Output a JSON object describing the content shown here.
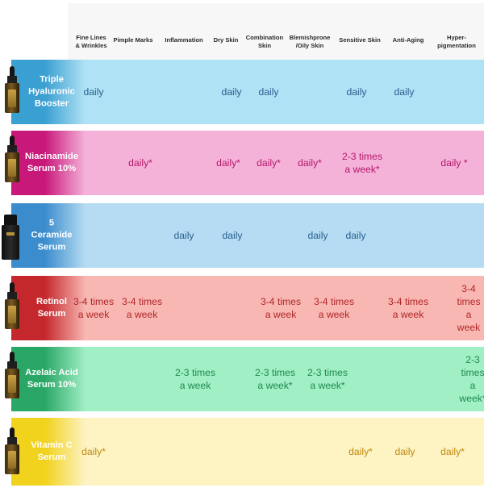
{
  "columns": [
    "Fine Lines\n& Wrinkles",
    "Pimple Marks",
    "Inflammation",
    "Dry Skin",
    "Combination\nSkin",
    "Blemishprone\n/Oily Skin",
    "Sensitive Skin",
    "Anti-Aging",
    "Hyper-\npigmentation"
  ],
  "rows": [
    {
      "product": "Triple\nHyaluronic\nBooster",
      "color": "#b0e2f5",
      "accent": "#3a9fd1",
      "text_color": "#2a5f8f",
      "cells": [
        "daily",
        "",
        "",
        "daily",
        "daily",
        "",
        "daily",
        "daily",
        ""
      ]
    },
    {
      "product": "Niacinamide\nSerum 10%",
      "color": "#f5b2d9",
      "accent": "#c8187a",
      "text_color": "#b3176b",
      "cells": [
        "",
        "daily*",
        "",
        "daily*",
        "daily*",
        "daily*",
        "2-3 times\na week*",
        "",
        "daily *"
      ]
    },
    {
      "product": "5\nCeramide\nSerum",
      "color": "#b5dcf3",
      "accent": "#3b8ccc",
      "text_color": "#2a5f8f",
      "cells": [
        "",
        "",
        "daily",
        "daily",
        "",
        "daily",
        "daily",
        "",
        ""
      ]
    },
    {
      "product": "Retinol\nSerum",
      "color": "#f8b7b3",
      "accent": "#c5282c",
      "text_color": "#b02626",
      "cells": [
        "3-4 times\na week",
        "3-4 times\na week",
        "",
        "",
        "3-4 times\na week",
        "3-4 times\na week",
        "",
        "3-4 times\na week",
        "3-4 times\na week"
      ]
    },
    {
      "product": "Azelaic Acid\nSerum 10%",
      "color": "#a1efc5",
      "accent": "#2aa766",
      "text_color": "#1f8a4f",
      "cells": [
        "",
        "",
        "2-3 times\na week",
        "",
        "2-3 times\na week*",
        "2-3 times\na week*",
        "",
        "",
        "2-3 times\na week*"
      ]
    },
    {
      "product": "Vitamin C\nSerum",
      "color": "#fdf3c3",
      "accent": "#f1d21c",
      "text_color": "#c08a12",
      "cells": [
        "daily*",
        "",
        "",
        "",
        "",
        "",
        "daily*",
        "daily",
        "daily*"
      ]
    }
  ]
}
